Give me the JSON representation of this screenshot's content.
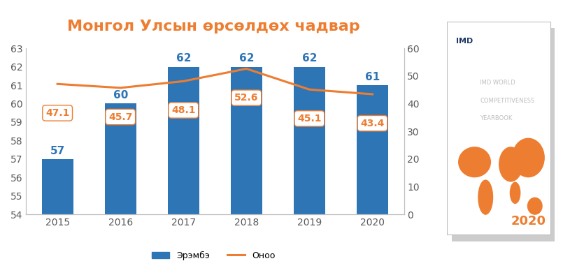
{
  "chart_data": {
    "type": "bar",
    "title": "Монгол Улсын өрсөлдөх чадвар",
    "categories": [
      "2015",
      "2016",
      "2017",
      "2018",
      "2019",
      "2020"
    ],
    "series": [
      {
        "name": "Эрэмбэ",
        "type": "bar",
        "color": "#2E75B6",
        "values": [
          57,
          60,
          62,
          62,
          62,
          61
        ]
      },
      {
        "name": "Оноо",
        "type": "line",
        "color": "#ED7D31",
        "axis": "y2",
        "values": [
          47.1,
          45.7,
          48.1,
          52.6,
          45.1,
          43.4
        ]
      }
    ],
    "ylim": [
      54,
      63
    ],
    "yticks": [
      54,
      55,
      56,
      57,
      58,
      59,
      60,
      61,
      62,
      63
    ],
    "y2lim": [
      0,
      60
    ],
    "y2ticks": [
      0,
      10,
      20,
      30,
      40,
      50,
      60
    ],
    "data_labels": true,
    "grid": false,
    "legend": "bottom",
    "annotations": [
      "IMD",
      "IMD WORLD",
      "COMPETITIVENESS",
      "YEARBOOK",
      "2020"
    ]
  }
}
